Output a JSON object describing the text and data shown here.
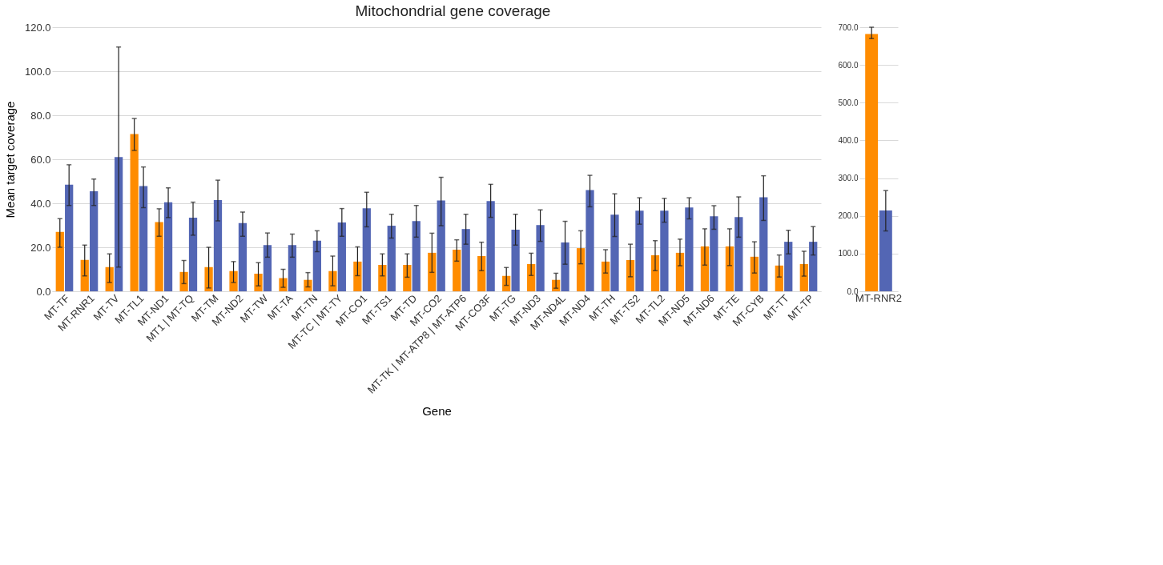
{
  "chart_data": [
    {
      "type": "bar",
      "title": "Mitochondrial gene coverage",
      "xlabel": "Gene",
      "ylabel": "Mean target coverage",
      "categories": [
        "MT-TF",
        "MT-RNR1",
        "MT-TV",
        "MT-TL1",
        "MT-ND1",
        "MT1 | MT-TQ",
        "MT-TM",
        "MT-ND2",
        "MT-TW",
        "MT-TA",
        "MT-TN",
        "MT-TC | MT-TY",
        "MT-CO1",
        "MT-TS1",
        "MT-TD",
        "MT-CO2",
        "MT-TK | MT-ATP8 | MT-ATP6",
        "MT-CO3F",
        "MT-TG",
        "MT-ND3",
        "MT-ND4L",
        "MT-ND4",
        "MT-TH",
        "MT-TS2",
        "MT-TL2",
        "MT-ND5",
        "MT-ND6",
        "MT-TE",
        "MT-CYB",
        "MT-TT",
        "MT-TP"
      ],
      "series": [
        {
          "color": "#ff8c00",
          "values": [
            27,
            14.3,
            11,
            71.5,
            31.5,
            8.8,
            11,
            9.2,
            8,
            6,
            5.2,
            9.2,
            13.5,
            12,
            12,
            17.5,
            18.9,
            16,
            7,
            12.4,
            5.2,
            19.6,
            13.5,
            14.2,
            16.4,
            17.5,
            20.4,
            20.4,
            15.7,
            11.7,
            12.4
          ],
          "errors": [
            [
              20,
              33
            ],
            [
              7,
              21
            ],
            [
              4,
              17
            ],
            [
              64,
              78.5
            ],
            [
              25,
              37.5
            ],
            [
              3.5,
              14
            ],
            [
              1.5,
              20
            ],
            [
              4,
              13.5
            ],
            [
              2.5,
              13
            ],
            [
              1.8,
              10
            ],
            [
              2,
              8.5
            ],
            [
              2.5,
              16
            ],
            [
              7.1,
              20.2
            ],
            [
              7,
              17
            ],
            [
              6.4,
              17
            ],
            [
              8.6,
              26.4
            ],
            [
              13.7,
              23.4
            ],
            [
              9.4,
              22.3
            ],
            [
              2.7,
              10.8
            ],
            [
              7.2,
              17.3
            ],
            [
              1.4,
              8.2
            ],
            [
              12.5,
              27.5
            ],
            [
              8.3,
              18.9
            ],
            [
              6.6,
              21.4
            ],
            [
              9.4,
              23
            ],
            [
              11.6,
              23.7
            ],
            [
              11.9,
              28.4
            ],
            [
              11.7,
              28.4
            ],
            [
              8.3,
              22.5
            ],
            [
              6.5,
              16.5
            ],
            [
              6.9,
              18.2
            ]
          ]
        },
        {
          "color": "#5366b4",
          "values": [
            48.5,
            45.5,
            61,
            47.8,
            40.5,
            33.5,
            41.5,
            31,
            21,
            21,
            23,
            31.3,
            37.7,
            29.8,
            31.9,
            41.3,
            28.3,
            41,
            28,
            30.1,
            22.2,
            46,
            34.8,
            36.6,
            36.6,
            38.1,
            34.1,
            33.7,
            42.7,
            22.5,
            22.5
          ],
          "errors": [
            [
              39,
              57.5
            ],
            [
              39,
              51
            ],
            [
              11,
              111
            ],
            [
              38,
              56.5
            ],
            [
              33.5,
              47
            ],
            [
              25.5,
              40.5
            ],
            [
              32,
              50.5
            ],
            [
              25,
              36
            ],
            [
              15.5,
              26.5
            ],
            [
              15.5,
              26
            ],
            [
              18,
              27.5
            ],
            [
              25,
              37.6
            ],
            [
              29.3,
              45
            ],
            [
              24.2,
              35
            ],
            [
              24.6,
              39
            ],
            [
              29.8,
              51.8
            ],
            [
              21.4,
              35
            ],
            [
              33.6,
              48.6
            ],
            [
              21,
              35
            ],
            [
              22.7,
              37
            ],
            [
              12.3,
              31.8
            ],
            [
              38.4,
              52.7
            ],
            [
              24.9,
              44.3
            ],
            [
              30.5,
              42.5
            ],
            [
              31.4,
              42.2
            ],
            [
              32.9,
              42.5
            ],
            [
              28.2,
              38.9
            ],
            [
              24.6,
              42.9
            ],
            [
              32.2,
              52.5
            ],
            [
              17,
              27.7
            ],
            [
              16.5,
              29.4
            ]
          ]
        }
      ],
      "ylim": [
        0,
        120
      ],
      "yticks": [
        {
          "value": 0,
          "label": "0.0"
        },
        {
          "value": 20,
          "label": "20.0"
        },
        {
          "value": 40,
          "label": "40.0"
        },
        {
          "value": 60,
          "label": "60.0"
        },
        {
          "value": 80,
          "label": "80.0"
        },
        {
          "value": 100,
          "label": "100.0"
        },
        {
          "value": 120,
          "label": "120.0"
        }
      ],
      "grid": "y",
      "legend": false
    },
    {
      "type": "bar",
      "categories": [
        "MT-RNR2"
      ],
      "series": [
        {
          "color": "#ff8c00",
          "values": [
            682
          ],
          "errors": [
            [
              670,
              700
            ]
          ]
        },
        {
          "color": "#5366b4",
          "values": [
            214
          ],
          "errors": [
            [
              160,
              267
            ]
          ]
        }
      ],
      "ylim": [
        0,
        700
      ],
      "yticks": [
        {
          "value": 0,
          "label": "0.0"
        },
        {
          "value": 100,
          "label": "100.0"
        },
        {
          "value": 200,
          "label": "200.0"
        },
        {
          "value": 300,
          "label": "300.0"
        },
        {
          "value": 400,
          "label": "400.0"
        },
        {
          "value": 500,
          "label": "500.0"
        },
        {
          "value": 600,
          "label": "600.0"
        },
        {
          "value": 700,
          "label": "700.0"
        }
      ],
      "grid": "y",
      "legend": false
    }
  ]
}
